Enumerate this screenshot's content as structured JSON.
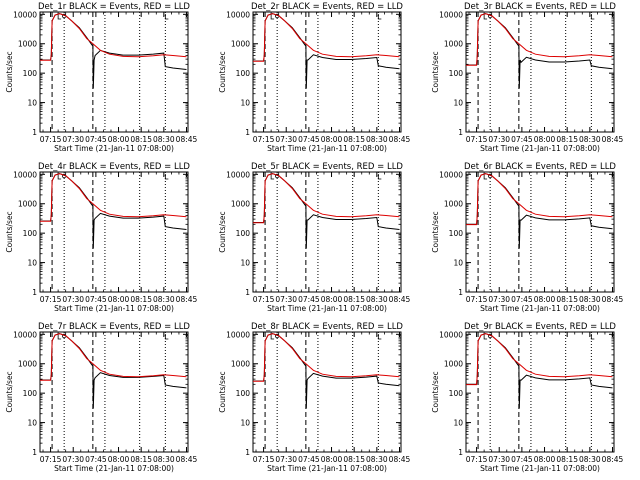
{
  "page": {
    "background": "#ffffff",
    "axis_color": "#000000"
  },
  "colors": {
    "events": "#000000",
    "lld": "#dd0000"
  },
  "chart_data": [
    {
      "id": "det1r",
      "title": "Det_1r BLACK = Events, RED = LLD",
      "events_low": 280,
      "events_plateau": 480,
      "events_end": 150
    },
    {
      "id": "det2r",
      "title": "Det_2r BLACK = Events, RED = LLD",
      "events_low": 260,
      "events_plateau": 340,
      "events_end": 160
    },
    {
      "id": "det3r",
      "title": "Det_3r BLACK = Events, RED = LLD",
      "events_low": 190,
      "events_plateau": 280,
      "events_end": 160
    },
    {
      "id": "det4r",
      "title": "Det_4r BLACK = Events, RED = LLD",
      "events_low": 260,
      "events_plateau": 380,
      "events_end": 150
    },
    {
      "id": "det5r",
      "title": "Det_5r BLACK = Events, RED = LLD",
      "events_low": 230,
      "events_plateau": 340,
      "events_end": 150
    },
    {
      "id": "det6r",
      "title": "Det_6r BLACK = Events, RED = LLD",
      "events_low": 200,
      "events_plateau": 330,
      "events_end": 160
    },
    {
      "id": "det7r",
      "title": "Det_7r BLACK = Events, RED = LLD",
      "events_low": 280,
      "events_plateau": 400,
      "events_end": 170
    },
    {
      "id": "det8r",
      "title": "Det_8r BLACK = Events, RED = LLD",
      "events_low": 260,
      "events_plateau": 380,
      "events_end": 200
    },
    {
      "id": "det9r",
      "title": "Det_9r BLACK = Events, RED = LLD",
      "events_low": 200,
      "events_plateau": 330,
      "events_end": 170
    }
  ],
  "common": {
    "type": "line",
    "layout": "3x3 grid",
    "ylabel": "Counts/sec",
    "xlabel": "Start Time (21-Jan-11 07:08:00)",
    "y_scale": "log",
    "ylim": [
      1,
      12000
    ],
    "yticks": [
      1,
      10,
      100,
      1000,
      10000
    ],
    "ytick_labels": [
      "1",
      "10",
      "100",
      "1000",
      "10000"
    ],
    "xlim_minutes": [
      0,
      98
    ],
    "xticks_minutes": [
      7,
      22,
      37,
      52,
      67,
      82,
      97
    ],
    "xtick_labels": [
      "07:15",
      "07:30",
      "07:45",
      "08:00",
      "08:15",
      "08:30",
      "08:45"
    ],
    "vlines_dashed_minutes": [
      8,
      35
    ],
    "vlines_dotted_minutes": [
      16,
      43,
      66,
      83
    ],
    "saa_marker_minutes": [
      12,
      83
    ],
    "series": [
      {
        "name": "Events",
        "color": "#000000",
        "points": [
          [
            0,
            300
          ],
          [
            7,
            290
          ],
          [
            7.5,
            430
          ],
          [
            8,
            6000
          ],
          [
            10,
            9500
          ],
          [
            13,
            10500
          ],
          [
            17,
            9000
          ],
          [
            21,
            6000
          ],
          [
            26,
            3500
          ],
          [
            31,
            1600
          ],
          [
            34.5,
            900
          ],
          [
            35,
            850
          ],
          [
            35.3,
            30
          ],
          [
            35.8,
            280
          ],
          [
            36.5,
            350
          ],
          [
            40,
            520
          ],
          [
            46,
            420
          ],
          [
            55,
            360
          ],
          [
            65,
            360
          ],
          [
            75,
            390
          ],
          [
            82,
            420
          ],
          [
            83,
            200
          ],
          [
            88,
            180
          ],
          [
            97,
            160
          ]
        ]
      },
      {
        "name": "LLD",
        "color": "#dd0000",
        "points": [
          [
            0,
            290
          ],
          [
            7,
            285
          ],
          [
            7.5,
            420
          ],
          [
            8,
            6000
          ],
          [
            10,
            9500
          ],
          [
            13,
            10500
          ],
          [
            17,
            9000
          ],
          [
            21,
            6000
          ],
          [
            26,
            3300
          ],
          [
            31,
            1500
          ],
          [
            35,
            1000
          ],
          [
            40,
            600
          ],
          [
            46,
            440
          ],
          [
            55,
            370
          ],
          [
            65,
            360
          ],
          [
            75,
            390
          ],
          [
            82,
            420
          ],
          [
            88,
            400
          ],
          [
            97,
            360
          ]
        ]
      }
    ]
  }
}
